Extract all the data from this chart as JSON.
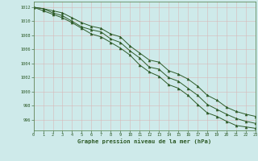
{
  "title": "Graphe pression niveau de la mer (hPa)",
  "background_color": "#ceeaea",
  "grid_color": "#b8d8d8",
  "line_color": "#2d5a27",
  "marker_color": "#2d5a27",
  "xlim": [
    0,
    23
  ],
  "ylim": [
    994.5,
    1012.8
  ],
  "xticks": [
    0,
    1,
    2,
    3,
    4,
    5,
    6,
    7,
    8,
    9,
    10,
    11,
    12,
    13,
    14,
    15,
    16,
    17,
    18,
    19,
    20,
    21,
    22,
    23
  ],
  "yticks": [
    996,
    998,
    1000,
    1002,
    1004,
    1006,
    1008,
    1010,
    1012
  ],
  "hours": [
    0,
    1,
    2,
    3,
    4,
    5,
    6,
    7,
    8,
    9,
    10,
    11,
    12,
    13,
    14,
    15,
    16,
    17,
    18,
    19,
    20,
    21,
    22,
    23
  ],
  "line1": [
    1012.0,
    1011.8,
    1011.2,
    1010.8,
    1010.0,
    1009.2,
    1008.8,
    1008.5,
    1007.5,
    1007.0,
    1005.8,
    1004.8,
    1003.5,
    1003.2,
    1002.0,
    1001.5,
    1000.5,
    999.5,
    998.2,
    997.5,
    996.8,
    996.2,
    995.8,
    995.5
  ],
  "line2": [
    1012.0,
    1011.8,
    1011.5,
    1011.2,
    1010.5,
    1009.8,
    1009.3,
    1009.0,
    1008.2,
    1007.8,
    1006.5,
    1005.5,
    1004.5,
    1004.2,
    1003.0,
    1002.5,
    1001.8,
    1000.8,
    999.5,
    998.8,
    997.8,
    997.2,
    996.8,
    996.5
  ],
  "line3": [
    1012.0,
    1011.5,
    1011.0,
    1010.5,
    1009.8,
    1009.0,
    1008.2,
    1007.8,
    1007.0,
    1006.2,
    1005.2,
    1003.8,
    1002.8,
    1002.2,
    1001.0,
    1000.5,
    999.5,
    998.2,
    997.0,
    996.5,
    995.8,
    995.2,
    995.0,
    994.8
  ]
}
